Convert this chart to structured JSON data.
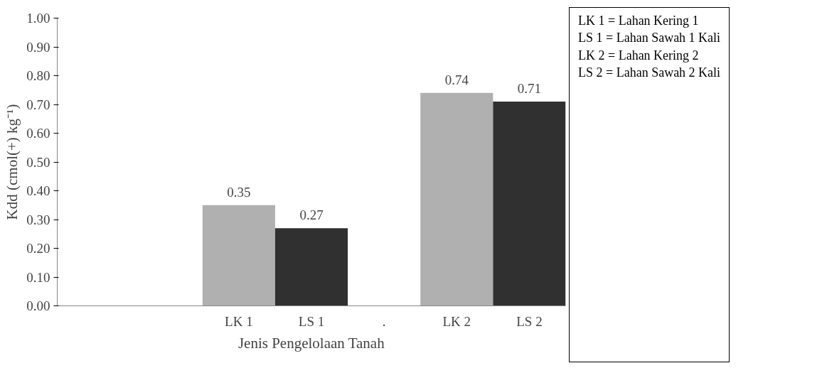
{
  "chart_data": {
    "type": "bar",
    "xlabel": "Jenis Pengelolaan Tanah",
    "ylabel": "Kdd (cmol(+) kg⁻¹)",
    "categories": [
      null,
      null,
      "LK 1",
      "LS 1",
      ".",
      "LK 2",
      "LS 2"
    ],
    "values": [
      null,
      null,
      0.35,
      0.27,
      null,
      0.74,
      0.71
    ],
    "colors": [
      null,
      null,
      "#b0b0b0",
      "#303030",
      null,
      "#b0b0b0",
      "#303030"
    ],
    "ylim": [
      0,
      1
    ],
    "yticks": [
      {
        "value": 0,
        "label": "0.00"
      },
      {
        "value": 0.1,
        "label": "0.10"
      },
      {
        "value": 0.2,
        "label": "0.20"
      },
      {
        "value": 0.3,
        "label": "0.30"
      },
      {
        "value": 0.4,
        "label": "0.40"
      },
      {
        "value": 0.5,
        "label": "0.50"
      },
      {
        "value": 0.6,
        "label": "0.60"
      },
      {
        "value": 0.7,
        "label": "0.70"
      },
      {
        "value": 0.8,
        "label": "0.80"
      },
      {
        "value": 0.9,
        "label": "0.90"
      },
      {
        "value": 1,
        "label": "1.00"
      }
    ],
    "data_labels": true,
    "grid": false,
    "annotations": [
      "LK 1 = Lahan Kering 1",
      "LS 1 = Lahan Sawah 1 Kali",
      "LK 2 = Lahan Kering 2",
      "LS 2 = Lahan Sawah 2 Kali"
    ]
  }
}
